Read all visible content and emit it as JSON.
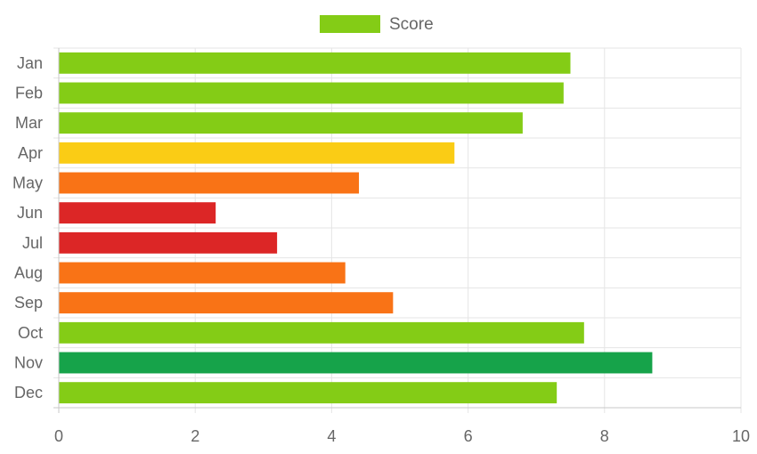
{
  "chart_data": {
    "type": "bar",
    "orientation": "horizontal",
    "categories": [
      "Jan",
      "Feb",
      "Mar",
      "Apr",
      "May",
      "Jun",
      "Jul",
      "Aug",
      "Sep",
      "Oct",
      "Nov",
      "Dec"
    ],
    "series": [
      {
        "name": "Score",
        "values": [
          7.5,
          7.4,
          6.8,
          5.8,
          4.4,
          2.3,
          3.2,
          4.2,
          4.9,
          7.7,
          8.7,
          7.3
        ],
        "colors": [
          "#84cc16",
          "#84cc16",
          "#84cc16",
          "#facc15",
          "#f97316",
          "#dc2626",
          "#dc2626",
          "#f97316",
          "#f97316",
          "#84cc16",
          "#16a34a",
          "#84cc16"
        ]
      }
    ],
    "xlim": [
      0,
      10
    ],
    "xticks": [
      "0",
      "2",
      "4",
      "6",
      "8",
      "10"
    ],
    "grid": true,
    "legend": {
      "position": "top",
      "label": "Score",
      "color": "#84cc16"
    },
    "colors": {
      "grid": "#e5e5e5",
      "axis": "#c8c8c8",
      "text": "#666666"
    }
  }
}
